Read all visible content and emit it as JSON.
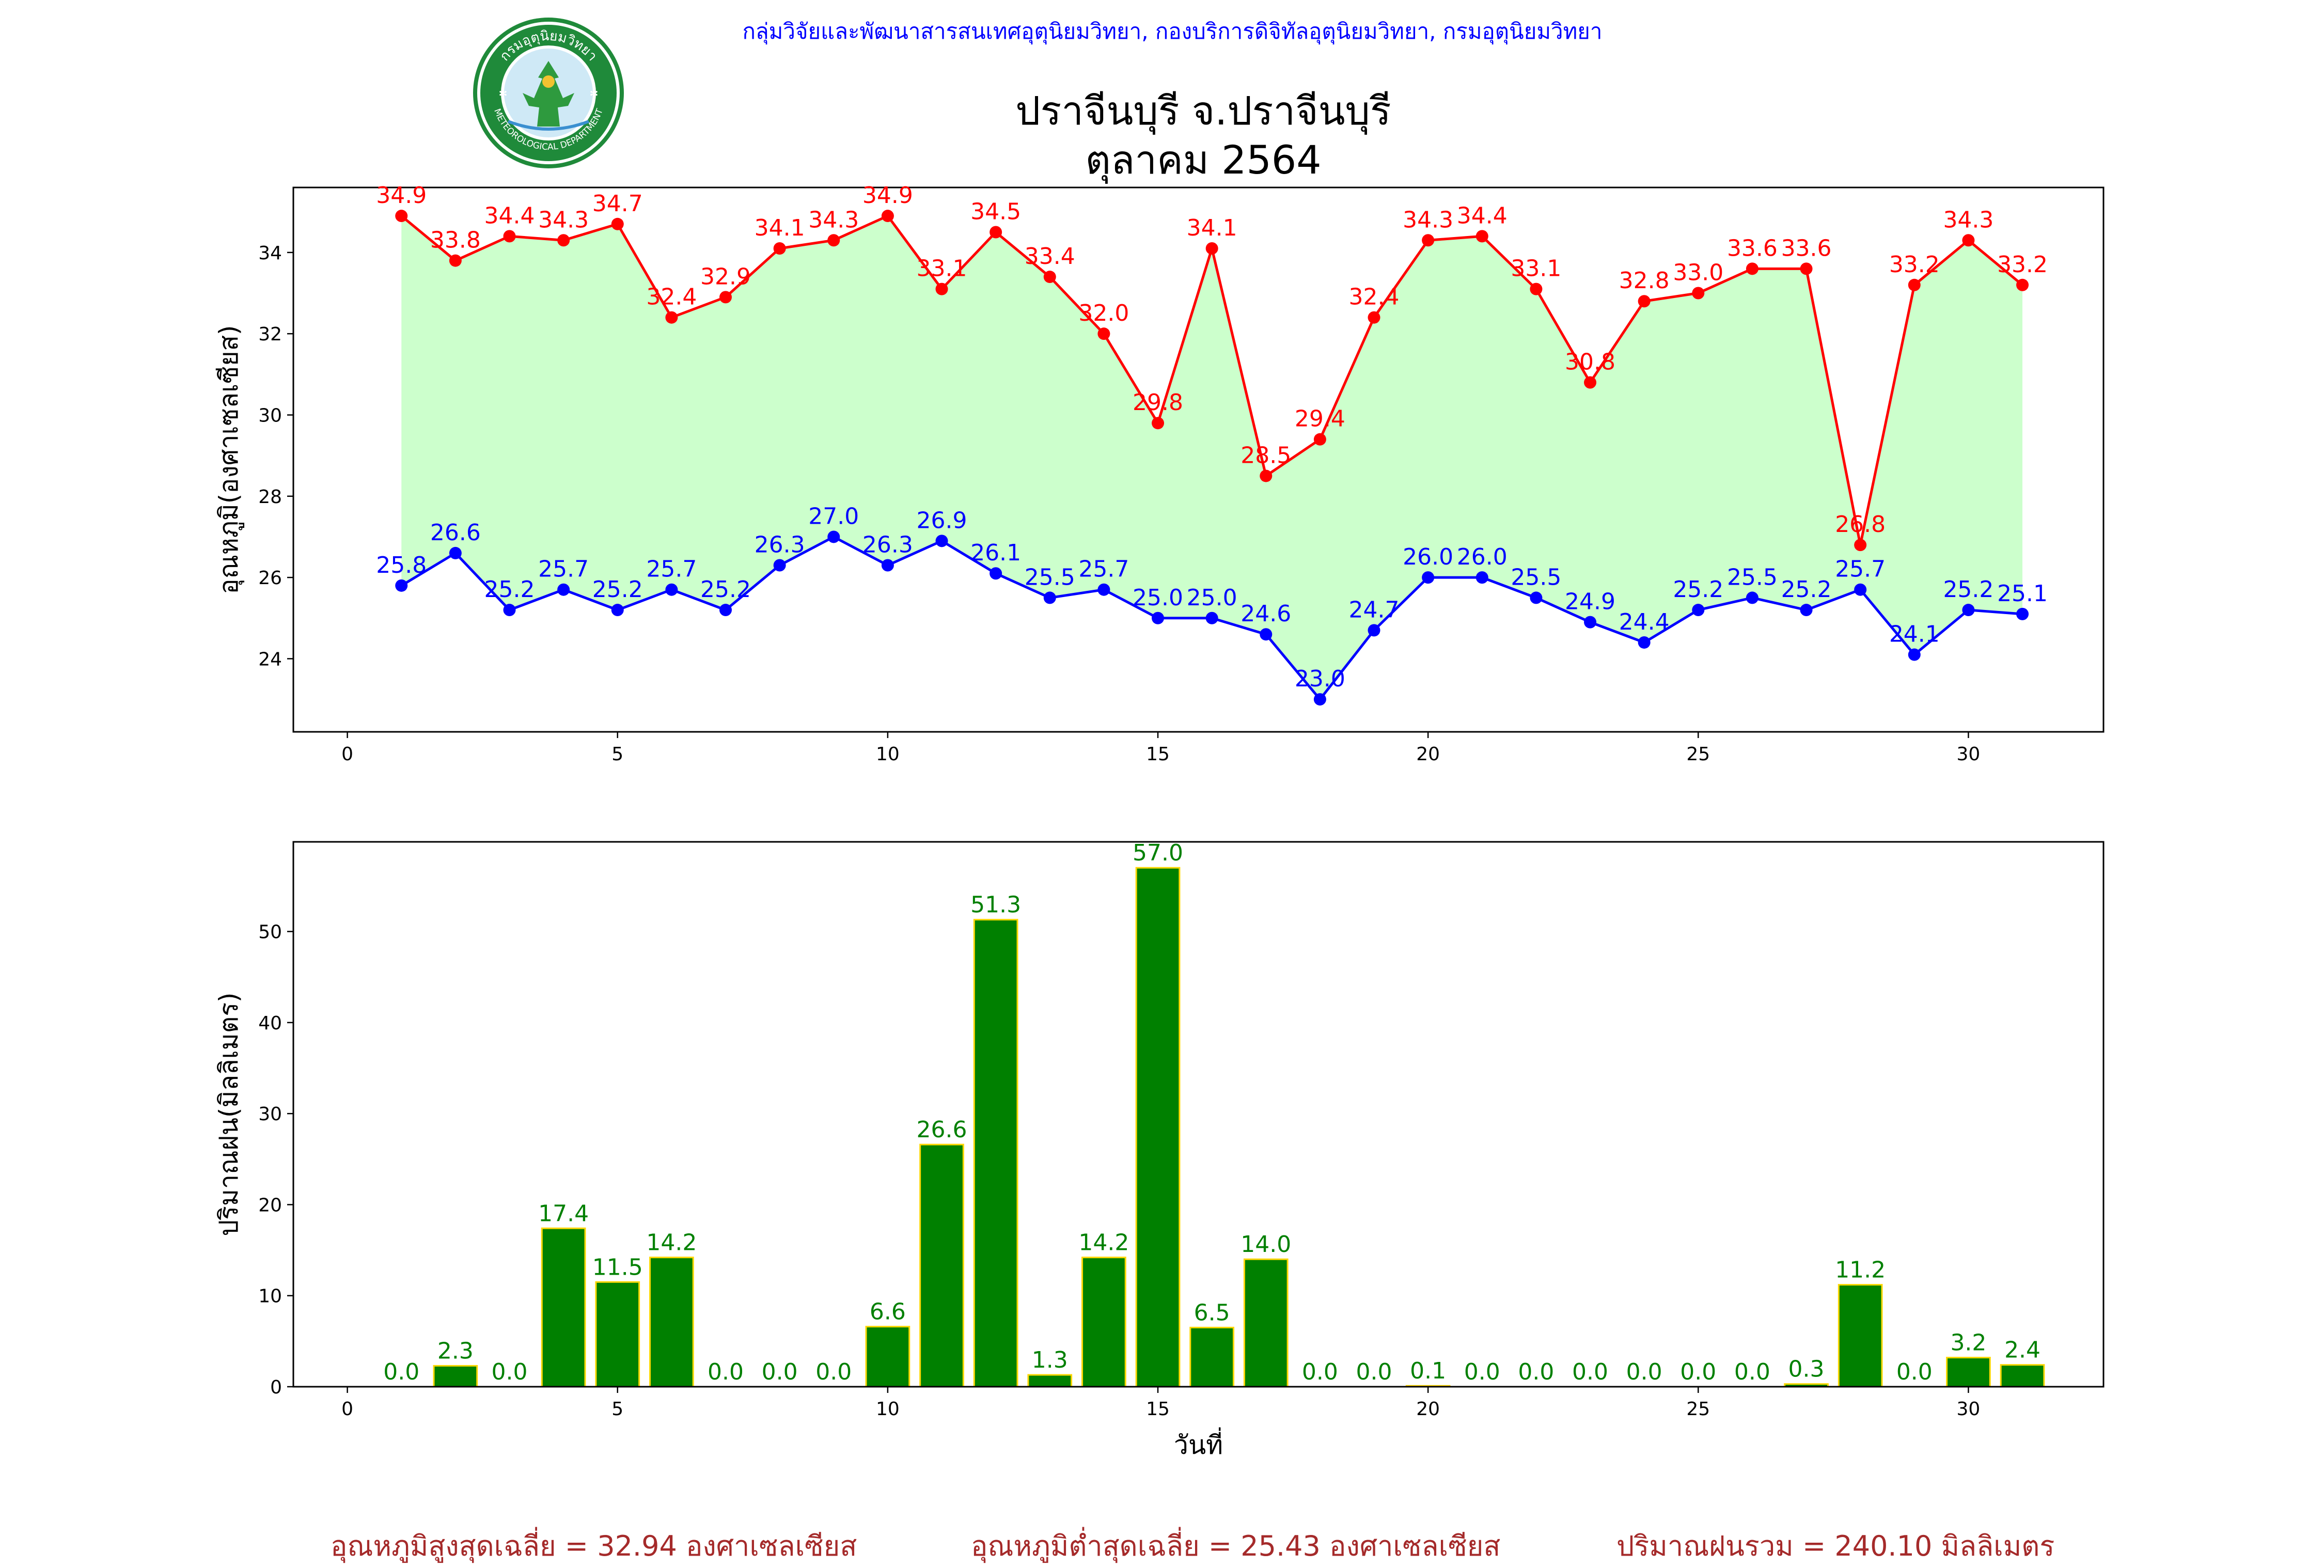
{
  "header_text": "กลุ่มวิจัยและพัฒนาสารสนเทศอุตุนิยมวิทยา, กองบริการดิจิทัลอุตุนิยมวิทยา, กรมอุตุนิยมวิทยา",
  "logo": {
    "top_text": "กรมอุตุนิยมวิทยา",
    "bottom_text": "METEOROLOGICAL DEPARTMENT"
  },
  "title_line1": "ปราจีนบุรี จ.ปราจีนบุรี",
  "title_line2": "ตุลาคม 2564",
  "colors": {
    "max": "#ff0000",
    "min": "#0000ff",
    "fill": "#ccffcc",
    "rain_bar": "#008000",
    "rain_edge": "#ffd700",
    "footer": "#a52a2a"
  },
  "chart_data": [
    {
      "type": "line",
      "ylabel": "อุณหภูมิ(องศาเซลเซียส)",
      "xlabel": "",
      "xlim": [
        -1,
        32.5
      ],
      "ylim": [
        22.2,
        35.6
      ],
      "xticks": [
        0,
        5,
        10,
        15,
        20,
        25,
        30
      ],
      "yticks": [
        24,
        26,
        28,
        30,
        32,
        34
      ],
      "x": [
        1,
        2,
        3,
        4,
        5,
        6,
        7,
        8,
        9,
        10,
        11,
        12,
        13,
        14,
        15,
        16,
        17,
        18,
        19,
        20,
        21,
        22,
        23,
        24,
        25,
        26,
        27,
        28,
        29,
        30,
        31
      ],
      "series": [
        {
          "key": "max",
          "color": "#ff0000",
          "values": [
            34.9,
            33.8,
            34.4,
            34.3,
            34.7,
            32.4,
            32.9,
            34.1,
            34.3,
            34.9,
            33.1,
            34.5,
            33.4,
            32.0,
            29.8,
            34.1,
            28.5,
            29.4,
            32.4,
            34.3,
            34.4,
            33.1,
            30.8,
            32.8,
            33.0,
            33.6,
            33.6,
            26.8,
            33.2,
            34.3,
            33.2
          ]
        },
        {
          "key": "min",
          "color": "#0000ff",
          "values": [
            25.8,
            26.6,
            25.2,
            25.7,
            25.2,
            25.7,
            25.2,
            26.3,
            27.0,
            26.3,
            26.9,
            26.1,
            25.5,
            25.7,
            25.0,
            25.0,
            24.6,
            23.0,
            24.7,
            26.0,
            26.0,
            25.5,
            24.9,
            24.4,
            25.2,
            25.5,
            25.2,
            25.7,
            24.1,
            25.2,
            25.1
          ]
        }
      ],
      "fill_between": true,
      "grid": false
    },
    {
      "type": "bar",
      "ylabel": "ปริมาณฝน(มิลลิเมตร)",
      "xlabel": "วันที่",
      "xlim": [
        -1,
        32.5
      ],
      "ylim": [
        0,
        59.85
      ],
      "xticks": [
        0,
        5,
        10,
        15,
        20,
        25,
        30
      ],
      "yticks": [
        0,
        10,
        20,
        30,
        40,
        50
      ],
      "x": [
        1,
        2,
        3,
        4,
        5,
        6,
        7,
        8,
        9,
        10,
        11,
        12,
        13,
        14,
        15,
        16,
        17,
        18,
        19,
        20,
        21,
        22,
        23,
        24,
        25,
        26,
        27,
        28,
        29,
        30,
        31
      ],
      "values": [
        0.0,
        2.3,
        0.0,
        17.4,
        11.5,
        14.2,
        0.0,
        0.0,
        0.0,
        6.6,
        26.6,
        51.3,
        1.3,
        14.2,
        57.0,
        6.5,
        14.0,
        0.0,
        0.0,
        0.1,
        0.0,
        0.0,
        0.0,
        0.0,
        0.0,
        0.0,
        0.3,
        11.2,
        0.0,
        3.2,
        2.4
      ],
      "grid": false
    }
  ],
  "footer": {
    "avg_max": "อุณหภูมิสูงสุดเฉลี่ย = 32.94 องศาเซลเซียส",
    "avg_min": "อุณหภูมิต่ำสุดเฉลี่ย = 25.43 องศาเซลเซียส",
    "total_rain": "ปริมาณฝนรวม = 240.10 มิลลิเมตร"
  }
}
